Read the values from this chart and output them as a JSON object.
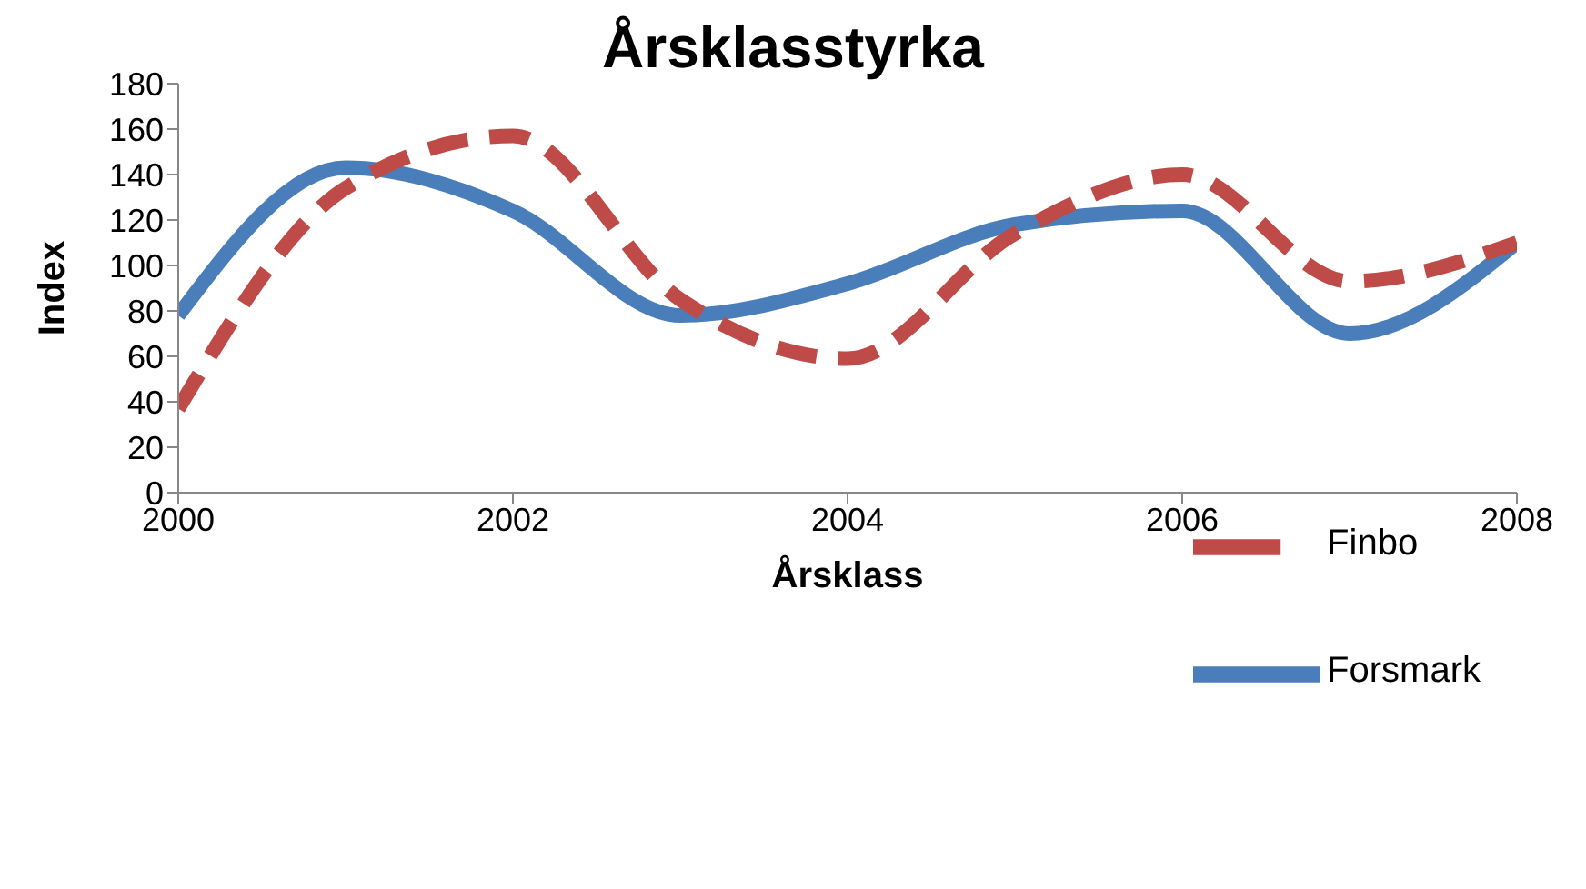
{
  "chart_data": {
    "type": "line",
    "title": "Årsklasstyrka",
    "xlabel": "Årsklass",
    "ylabel": "Index",
    "x": [
      2000,
      2001,
      2002,
      2003,
      2004,
      2005,
      2006,
      2007,
      2008
    ],
    "series": [
      {
        "name": "Forsmark",
        "color": "#4a7ebb",
        "line_style": "solid",
        "values": [
          78,
          143,
          124,
          78,
          92,
          118,
          124,
          70,
          110
        ]
      },
      {
        "name": "Finbo",
        "color": "#be4b48",
        "line_style": "dashed",
        "values": [
          37,
          134,
          157,
          85,
          59,
          114,
          140,
          93,
          110
        ]
      }
    ],
    "xlim": [
      2000,
      2008
    ],
    "xticks": [
      2000,
      2002,
      2004,
      2006,
      2008
    ],
    "ylim": [
      0,
      180
    ],
    "yticks": [
      0,
      20,
      40,
      60,
      80,
      100,
      120,
      140,
      160,
      180
    ],
    "grid": false,
    "legend": "bottom right",
    "marker": "none"
  }
}
